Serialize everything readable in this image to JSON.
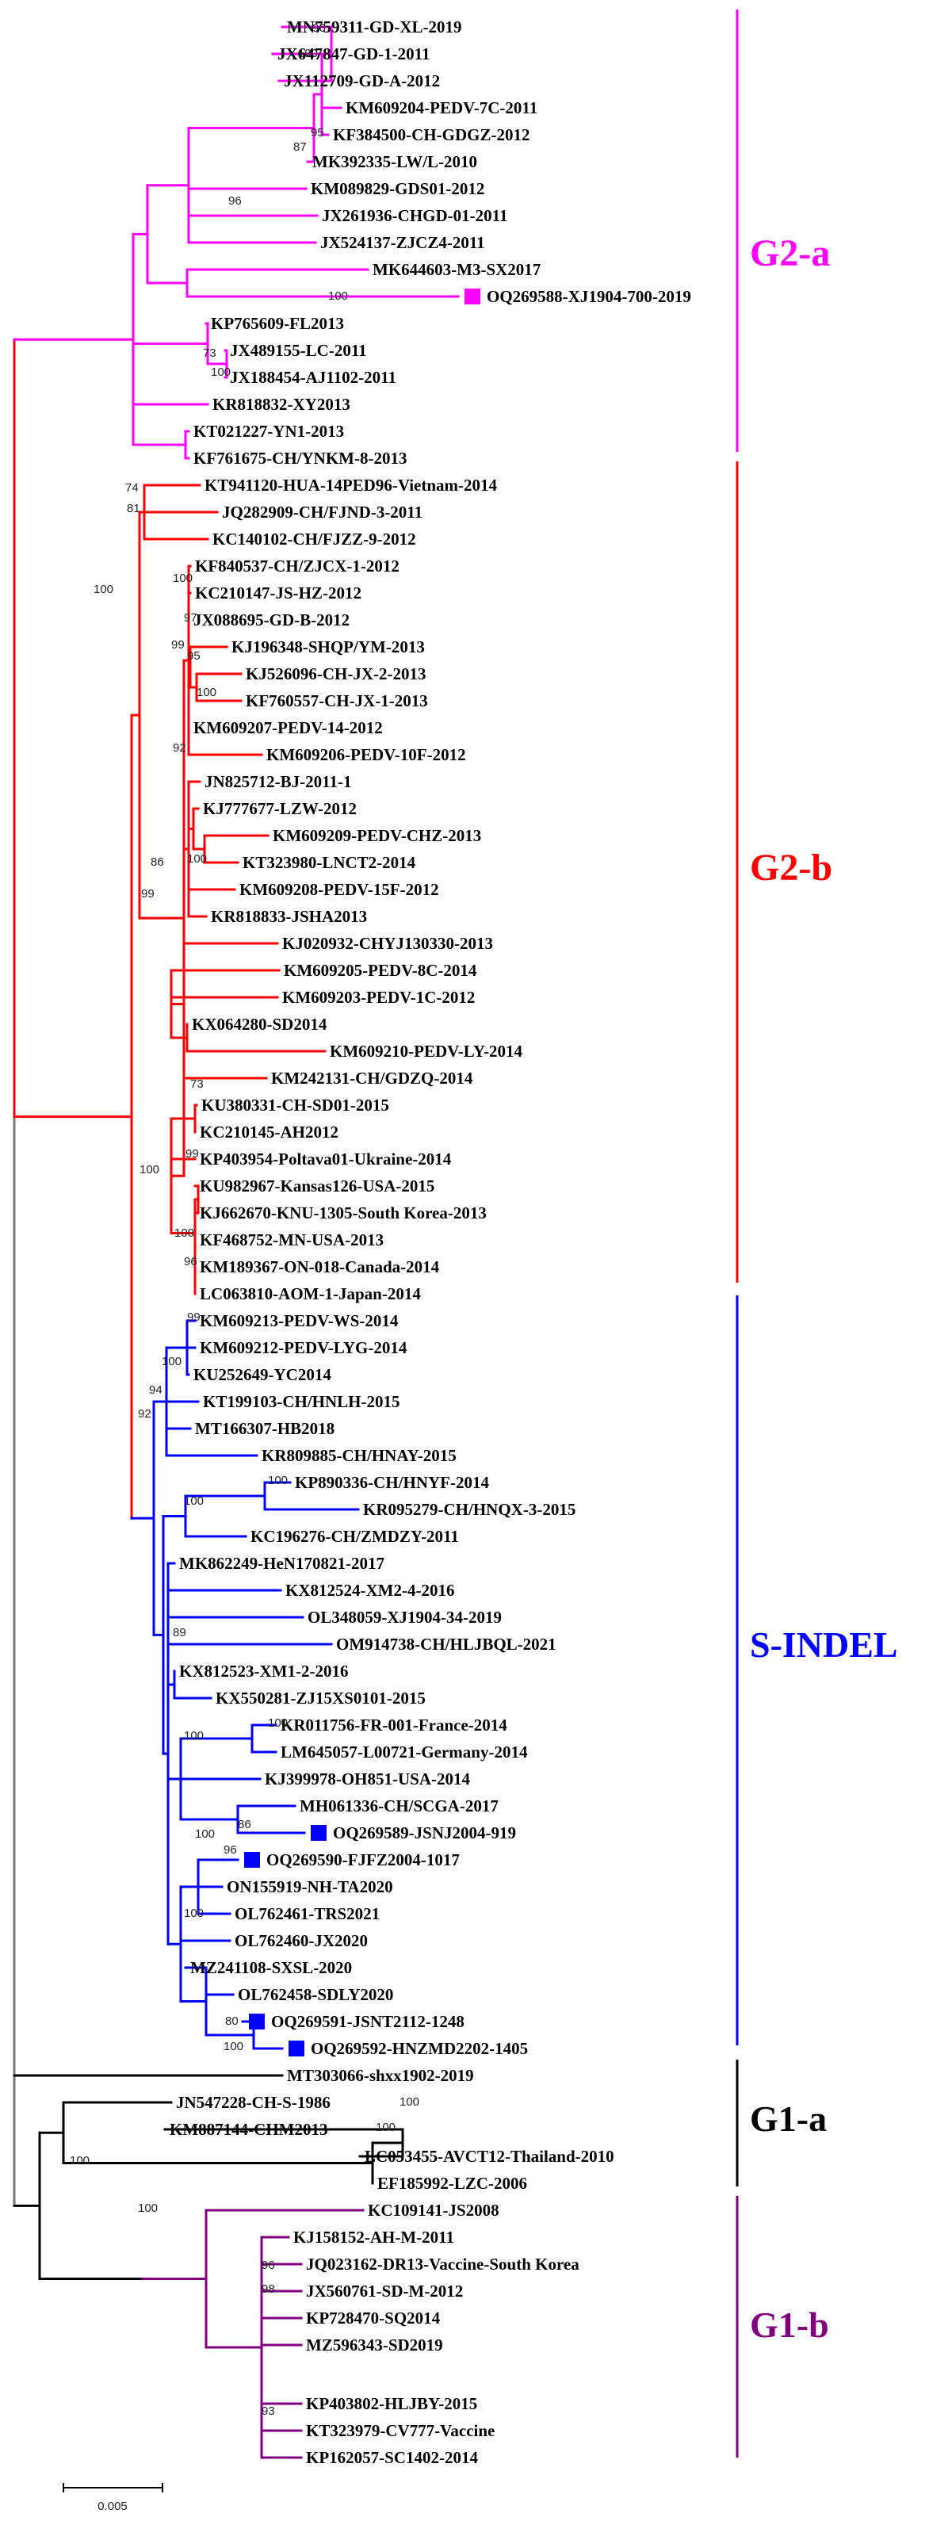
{
  "figure": "phylogenetic tree",
  "colors": {
    "G2-a": "#ff00ff",
    "G2-b": "#ff0000",
    "S-INDEL": "#0000ff",
    "G1-a": "#000000",
    "G1-b": "#800080",
    "root": "#777777",
    "highlight_square": "marker for this study's strains"
  },
  "groups": [
    {
      "key": "G2-a",
      "label": "G2-a"
    },
    {
      "key": "G2-b",
      "label": "G2-b"
    },
    {
      "key": "S-INDEL",
      "label": "S-INDEL"
    },
    {
      "key": "G1-a",
      "label": "G1-a"
    },
    {
      "key": "G1-b",
      "label": "G1-b"
    }
  ],
  "leaves": [
    {
      "name": "MN759311-GD-XL-2019",
      "clade": "G2-a"
    },
    {
      "name": "JX647847-GD-1-2011",
      "clade": "G2-a"
    },
    {
      "name": "JX112709-GD-A-2012",
      "clade": "G2-a"
    },
    {
      "name": "KM609204-PEDV-7C-2011",
      "clade": "G2-a"
    },
    {
      "name": "KF384500-CH-GDGZ-2012",
      "clade": "G2-a"
    },
    {
      "name": "MK392335-LW/L-2010",
      "clade": "G2-a"
    },
    {
      "name": "KM089829-GDS01-2012",
      "clade": "G2-a"
    },
    {
      "name": "JX261936-CHGD-01-2011",
      "clade": "G2-a"
    },
    {
      "name": "JX524137-ZJCZ4-2011",
      "clade": "G2-a"
    },
    {
      "name": "MK644603-M3-SX2017",
      "clade": "G2-a"
    },
    {
      "name": "OQ269588-XJ1904-700-2019",
      "clade": "G2-a",
      "highlight": true
    },
    {
      "name": "KP765609-FL2013",
      "clade": "G2-a"
    },
    {
      "name": "JX489155-LC-2011",
      "clade": "G2-a"
    },
    {
      "name": "JX188454-AJ1102-2011",
      "clade": "G2-a"
    },
    {
      "name": "KR818832-XY2013",
      "clade": "G2-a"
    },
    {
      "name": "KT021227-YN1-2013",
      "clade": "G2-a"
    },
    {
      "name": "KF761675-CH/YNKM-8-2013",
      "clade": "G2-a"
    },
    {
      "name": "KT941120-HUA-14PED96-Vietnam-2014",
      "clade": "G2-b"
    },
    {
      "name": "JQ282909-CH/FJND-3-2011",
      "clade": "G2-b"
    },
    {
      "name": "KC140102-CH/FJZZ-9-2012",
      "clade": "G2-b"
    },
    {
      "name": "KF840537-CH/ZJCX-1-2012",
      "clade": "G2-b"
    },
    {
      "name": "KC210147-JS-HZ-2012",
      "clade": "G2-b"
    },
    {
      "name": "JX088695-GD-B-2012",
      "clade": "G2-b"
    },
    {
      "name": "KJ196348-SHQP/YM-2013",
      "clade": "G2-b"
    },
    {
      "name": "KJ526096-CH-JX-2-2013",
      "clade": "G2-b"
    },
    {
      "name": "KF760557-CH-JX-1-2013",
      "clade": "G2-b"
    },
    {
      "name": "KM609207-PEDV-14-2012",
      "clade": "G2-b"
    },
    {
      "name": "KM609206-PEDV-10F-2012",
      "clade": "G2-b"
    },
    {
      "name": "JN825712-BJ-2011-1",
      "clade": "G2-b"
    },
    {
      "name": "KJ777677-LZW-2012",
      "clade": "G2-b"
    },
    {
      "name": "KM609209-PEDV-CHZ-2013",
      "clade": "G2-b"
    },
    {
      "name": "KT323980-LNCT2-2014",
      "clade": "G2-b"
    },
    {
      "name": "KM609208-PEDV-15F-2012",
      "clade": "G2-b"
    },
    {
      "name": "KR818833-JSHA2013",
      "clade": "G2-b"
    },
    {
      "name": "KJ020932-CHYJ130330-2013",
      "clade": "G2-b"
    },
    {
      "name": "KM609205-PEDV-8C-2014",
      "clade": "G2-b"
    },
    {
      "name": "KM609203-PEDV-1C-2012",
      "clade": "G2-b"
    },
    {
      "name": "KX064280-SD2014",
      "clade": "G2-b"
    },
    {
      "name": "KM609210-PEDV-LY-2014",
      "clade": "G2-b"
    },
    {
      "name": "KM242131-CH/GDZQ-2014",
      "clade": "G2-b"
    },
    {
      "name": "KU380331-CH-SD01-2015",
      "clade": "G2-b"
    },
    {
      "name": "KC210145-AH2012",
      "clade": "G2-b"
    },
    {
      "name": "KP403954-Poltava01-Ukraine-2014",
      "clade": "G2-b"
    },
    {
      "name": "KU982967-Kansas126-USA-2015",
      "clade": "G2-b"
    },
    {
      "name": "KJ662670-KNU-1305-South Korea-2013",
      "clade": "G2-b"
    },
    {
      "name": "KF468752-MN-USA-2013",
      "clade": "G2-b"
    },
    {
      "name": "KM189367-ON-018-Canada-2014",
      "clade": "G2-b"
    },
    {
      "name": "LC063810-AOM-1-Japan-2014",
      "clade": "G2-b"
    },
    {
      "name": "KM609213-PEDV-WS-2014",
      "clade": "S-INDEL"
    },
    {
      "name": "KM609212-PEDV-LYG-2014",
      "clade": "S-INDEL"
    },
    {
      "name": "KU252649-YC2014",
      "clade": "S-INDEL"
    },
    {
      "name": "KT199103-CH/HNLH-2015",
      "clade": "S-INDEL"
    },
    {
      "name": "MT166307-HB2018",
      "clade": "S-INDEL"
    },
    {
      "name": "KR809885-CH/HNAY-2015",
      "clade": "S-INDEL"
    },
    {
      "name": "KP890336-CH/HNYF-2014",
      "clade": "S-INDEL"
    },
    {
      "name": "KR095279-CH/HNQX-3-2015",
      "clade": "S-INDEL"
    },
    {
      "name": "KC196276-CH/ZMDZY-2011",
      "clade": "S-INDEL"
    },
    {
      "name": "MK862249-HeN170821-2017",
      "clade": "S-INDEL"
    },
    {
      "name": "KX812524-XM2-4-2016",
      "clade": "S-INDEL"
    },
    {
      "name": "OL348059-XJ1904-34-2019",
      "clade": "S-INDEL"
    },
    {
      "name": "OM914738-CH/HLJBQL-2021",
      "clade": "S-INDEL"
    },
    {
      "name": "KX812523-XM1-2-2016",
      "clade": "S-INDEL"
    },
    {
      "name": "KX550281-ZJ15XS0101-2015",
      "clade": "S-INDEL"
    },
    {
      "name": "KR011756-FR-001-France-2014",
      "clade": "S-INDEL"
    },
    {
      "name": "LM645057-L00721-Germany-2014",
      "clade": "S-INDEL"
    },
    {
      "name": "KJ399978-OH851-USA-2014",
      "clade": "S-INDEL"
    },
    {
      "name": "MH061336-CH/SCGA-2017",
      "clade": "S-INDEL"
    },
    {
      "name": "OQ269589-JSNJ2004-919",
      "clade": "S-INDEL",
      "highlight": true
    },
    {
      "name": "OQ269590-FJFZ2004-1017",
      "clade": "S-INDEL",
      "highlight": true
    },
    {
      "name": "ON155919-NH-TA2020",
      "clade": "S-INDEL"
    },
    {
      "name": "OL762461-TRS2021",
      "clade": "S-INDEL"
    },
    {
      "name": "OL762460-JX2020",
      "clade": "S-INDEL"
    },
    {
      "name": "MZ241108-SXSL-2020",
      "clade": "S-INDEL"
    },
    {
      "name": "OL762458-SDLY2020",
      "clade": "S-INDEL"
    },
    {
      "name": "OQ269591-JSNT2112-1248",
      "clade": "S-INDEL",
      "highlight": true
    },
    {
      "name": "OQ269592-HNZMD2202-1405",
      "clade": "S-INDEL",
      "highlight": true
    },
    {
      "name": "MT303066-shxx1902-2019",
      "clade": "G1-a"
    },
    {
      "name": "JN547228-CH-S-1986",
      "clade": "G1-a"
    },
    {
      "name": "KM887144-CHM2013",
      "clade": "G1-a"
    },
    {
      "name": "LC053455-AVCT12-Thailand-2010",
      "clade": "G1-a"
    },
    {
      "name": "EF185992-LZC-2006",
      "clade": "G1-a"
    },
    {
      "name": "KC109141-JS2008",
      "clade": "G1-b"
    },
    {
      "name": "KJ158152-AH-M-2011",
      "clade": "G1-b"
    },
    {
      "name": "JQ023162-DR13-Vaccine-South Korea",
      "clade": "G1-b"
    },
    {
      "name": "JX560761-SD-M-2012",
      "clade": "G1-b"
    },
    {
      "name": "KP728470-SQ2014",
      "clade": "G1-b"
    },
    {
      "name": "MZ596343-SD2019",
      "clade": "G1-b"
    },
    {
      "name": "KP403802-HLJBY-2015",
      "clade": "G1-b"
    },
    {
      "name": "KT323979-CV777-Vaccine",
      "clade": "G1-b"
    },
    {
      "name": "KP162057-SC1402-2014",
      "clade": "G1-b"
    }
  ],
  "bootstrap": [
    {
      "id": "b1",
      "value": "96"
    },
    {
      "id": "b2",
      "value": "100"
    },
    {
      "id": "b3",
      "value": "95"
    },
    {
      "id": "b4",
      "value": "87"
    },
    {
      "id": "b5",
      "value": "96"
    },
    {
      "id": "b6",
      "value": "100"
    },
    {
      "id": "b7",
      "value": "73"
    },
    {
      "id": "b8",
      "value": "100"
    },
    {
      "id": "b9",
      "value": "74"
    },
    {
      "id": "b10",
      "value": "81"
    },
    {
      "id": "b11",
      "value": "100"
    },
    {
      "id": "b12",
      "value": "100"
    },
    {
      "id": "b13",
      "value": "97"
    },
    {
      "id": "b14",
      "value": "99"
    },
    {
      "id": "b15",
      "value": "95"
    },
    {
      "id": "b16",
      "value": "100"
    },
    {
      "id": "b17",
      "value": "92"
    },
    {
      "id": "b18",
      "value": "86"
    },
    {
      "id": "b19",
      "value": "100"
    },
    {
      "id": "b20",
      "value": "99"
    },
    {
      "id": "b21",
      "value": "73"
    },
    {
      "id": "b22",
      "value": "100"
    },
    {
      "id": "b23",
      "value": "99"
    },
    {
      "id": "b24",
      "value": "100"
    },
    {
      "id": "b25",
      "value": "96"
    },
    {
      "id": "b26",
      "value": "99"
    },
    {
      "id": "b27",
      "value": "100"
    },
    {
      "id": "b28",
      "value": "94"
    },
    {
      "id": "b29",
      "value": "92"
    },
    {
      "id": "b30",
      "value": "100"
    },
    {
      "id": "b31",
      "value": "100"
    },
    {
      "id": "b32",
      "value": "89"
    },
    {
      "id": "b33",
      "value": "100"
    },
    {
      "id": "b34",
      "value": "100"
    },
    {
      "id": "b35",
      "value": "86"
    },
    {
      "id": "b36",
      "value": "96"
    },
    {
      "id": "b37",
      "value": "100"
    },
    {
      "id": "b38",
      "value": "100"
    },
    {
      "id": "b39",
      "value": "80"
    },
    {
      "id": "b40",
      "value": "100"
    },
    {
      "id": "b41",
      "value": "100"
    },
    {
      "id": "b42",
      "value": "100"
    },
    {
      "id": "b43",
      "value": "100"
    },
    {
      "id": "b44",
      "value": "96"
    },
    {
      "id": "b45",
      "value": "98"
    },
    {
      "id": "b46",
      "value": "100"
    },
    {
      "id": "b47",
      "value": "93"
    }
  ],
  "scale_bar": {
    "label": "0.005",
    "value": 0.005
  }
}
